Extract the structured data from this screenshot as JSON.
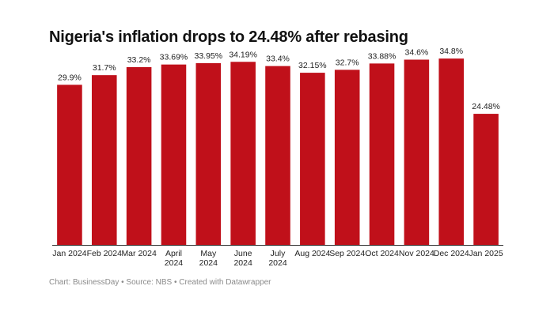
{
  "chart_data": {
    "type": "bar",
    "title": "Nigeria's inflation drops to 24.48% after rebasing",
    "xlabel": "",
    "ylabel": "",
    "ylim": [
      0,
      36
    ],
    "grid": false,
    "legend": "none",
    "bar_color": "#c0101a",
    "categories": [
      [
        "Jan 2024"
      ],
      [
        "Feb 2024"
      ],
      [
        "Mar 2024"
      ],
      [
        "April",
        "2024"
      ],
      [
        "May",
        "2024"
      ],
      [
        "June",
        "2024"
      ],
      [
        "July",
        "2024"
      ],
      [
        "Aug 2024"
      ],
      [
        "Sep 2024"
      ],
      [
        "Oct 2024"
      ],
      [
        "Nov 2024"
      ],
      [
        "Dec 2024"
      ],
      [
        "Jan 2025"
      ]
    ],
    "values": [
      29.9,
      31.7,
      33.2,
      33.69,
      33.95,
      34.19,
      33.4,
      32.15,
      32.7,
      33.88,
      34.6,
      34.8,
      24.48
    ],
    "value_labels": [
      "29.9%",
      "31.7%",
      "33.2%",
      "33.69%",
      "33.95%",
      "34.19%",
      "33.4%",
      "32.15%",
      "32.7%",
      "33.88%",
      "34.6%",
      "34.8%",
      "24.48%"
    ]
  },
  "footer": {
    "text": "Chart: BusinessDay • Source: NBS • Created with Datawrapper"
  }
}
